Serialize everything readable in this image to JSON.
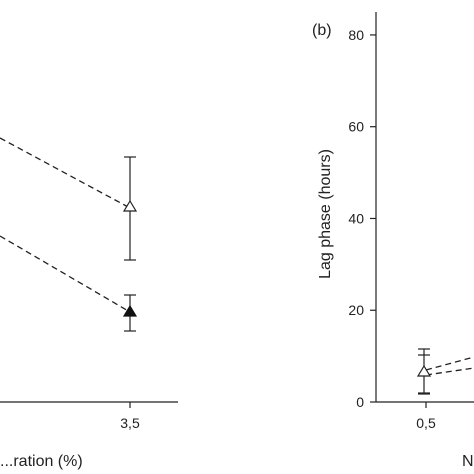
{
  "chart_data": [
    {
      "panel": "left (cropped)",
      "type": "line",
      "xlabel": "...ration (%)",
      "x_tick_labels": [
        "3,5"
      ],
      "series": [
        {
          "marker": "open-triangle",
          "points": [
            {
              "x": 3.5,
              "y": 42,
              "err": 12
            }
          ]
        },
        {
          "marker": "filled-triangle",
          "points": [
            {
              "x": 3.5,
              "y": 20,
              "err": 4
            }
          ]
        }
      ]
    },
    {
      "panel_label": "(b)",
      "type": "line",
      "ylabel": "Lag phase (hours)",
      "xlabel": "N",
      "ylim": [
        0,
        85
      ],
      "y_ticks": [
        0,
        20,
        40,
        60,
        80
      ],
      "y_tick_labels": [
        "0",
        "20",
        "40",
        "60",
        "80"
      ],
      "x_tick_labels": [
        "0,5"
      ],
      "series": [
        {
          "marker": "open-triangle",
          "points": [
            {
              "x": 0.5,
              "y": 6.5,
              "err": 5
            }
          ]
        },
        {
          "marker": "filled-triangle",
          "points": [
            {
              "x": 0.5,
              "y": 6,
              "err": 4
            }
          ]
        }
      ]
    }
  ]
}
